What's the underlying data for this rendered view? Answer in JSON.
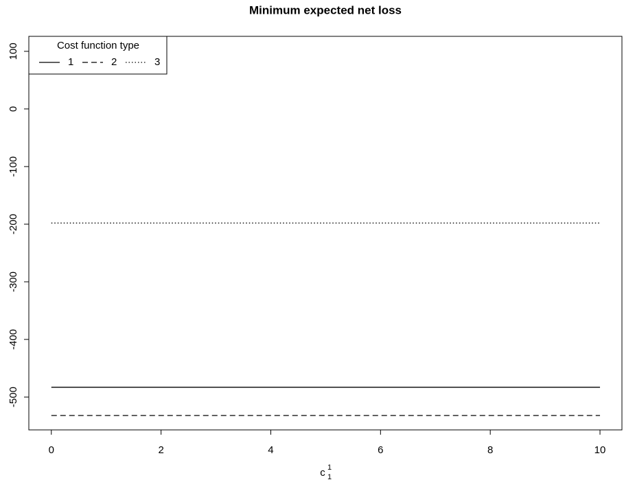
{
  "chart_data": {
    "type": "line",
    "title": "Minimum expected net loss",
    "x_label": "c",
    "x_label_sub": "1",
    "x_label_sup": "1",
    "legend_title": "Cost function type",
    "legend": "topleft",
    "x": [
      0,
      1,
      2,
      3,
      4,
      5,
      6,
      7,
      8,
      9,
      10
    ],
    "series": [
      {
        "name": "1",
        "color": "#000000",
        "dash": "solid",
        "values": [
          -483,
          -483,
          -483,
          -483,
          -483,
          -483,
          -483,
          -483,
          -483,
          -483,
          -483
        ]
      },
      {
        "name": "2",
        "color": "#000000",
        "dash": "dashed",
        "values": [
          -532,
          -532,
          -532,
          -532,
          -532,
          -532,
          -532,
          -532,
          -532,
          -532,
          -532
        ]
      },
      {
        "name": "3",
        "color": "#000000",
        "dash": "dotted",
        "values": [
          -198,
          -198,
          -198,
          -198,
          -198,
          -198,
          -198,
          -198,
          -198,
          -198,
          -198
        ]
      }
    ],
    "xlim": [
      -0.41,
      10.4
    ],
    "ylim": [
      -557,
      126
    ],
    "xticks": [
      0,
      2,
      4,
      6,
      8,
      10
    ],
    "yticks": [
      -500,
      -400,
      -300,
      -200,
      -100,
      0,
      100
    ]
  }
}
